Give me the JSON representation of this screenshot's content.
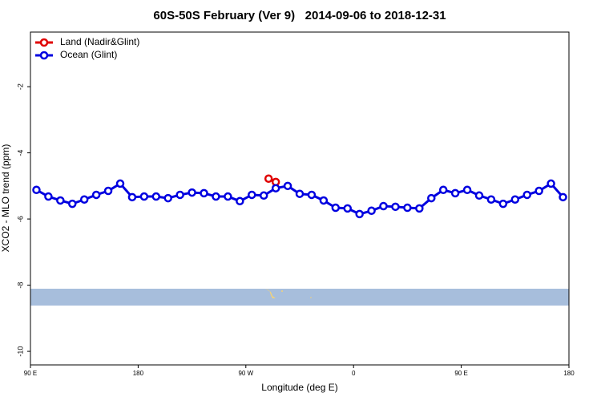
{
  "chart_data": {
    "type": "line",
    "title": "60S-50S February (Ver 9)   2014-09-06 to 2018-12-31",
    "x_label": "Longitude (deg E)",
    "y_label": "XCO2 - MLO trend (ppm)",
    "xlim": [
      90,
      540
    ],
    "ylim": [
      -10.41,
      -0.35
    ],
    "xticks": [
      {
        "value": 90,
        "label": "90 E"
      },
      180,
      {
        "value": 270,
        "label": "90 W"
      },
      {
        "value": 360,
        "label": "0"
      },
      {
        "value": 450,
        "label": "90 E"
      },
      {
        "value": 540,
        "label": "180"
      }
    ],
    "yticks": [
      -2,
      -4,
      -6,
      -8,
      -10
    ],
    "legend": "upper left",
    "series": [
      {
        "name": "Land (Nadir&Glint)",
        "color": "#e00000",
        "x": [
          289,
          295
        ],
        "values": [
          -4.78,
          -4.88
        ]
      },
      {
        "name": "Ocean (Glint)",
        "color": "#0000e0",
        "x": [
          95,
          105,
          115,
          125,
          135,
          145,
          155,
          165,
          175,
          185,
          195,
          205,
          215,
          225,
          235,
          245,
          255,
          265,
          275,
          285,
          295,
          305,
          315,
          325,
          335,
          345,
          355,
          365,
          375,
          385,
          395,
          405,
          415,
          425,
          435,
          445,
          455,
          465,
          475,
          485,
          495,
          505,
          515,
          525,
          535
        ],
        "values": [
          -5.12,
          -5.32,
          -5.44,
          -5.54,
          -5.41,
          -5.27,
          -5.15,
          -4.93,
          -5.34,
          -5.32,
          -5.32,
          -5.37,
          -5.27,
          -5.2,
          -5.22,
          -5.32,
          -5.32,
          -5.46,
          -5.27,
          -5.29,
          -5.07,
          -5.0,
          -5.24,
          -5.27,
          -5.44,
          -5.66,
          -5.68,
          -5.85,
          -5.75,
          -5.61,
          -5.63,
          -5.66,
          -5.68,
          -5.37,
          -5.12,
          -5.22,
          -5.12,
          -5.29,
          -5.41,
          -5.54,
          -5.41,
          -5.27,
          -5.15,
          -4.93,
          -5.34
        ]
      }
    ]
  }
}
